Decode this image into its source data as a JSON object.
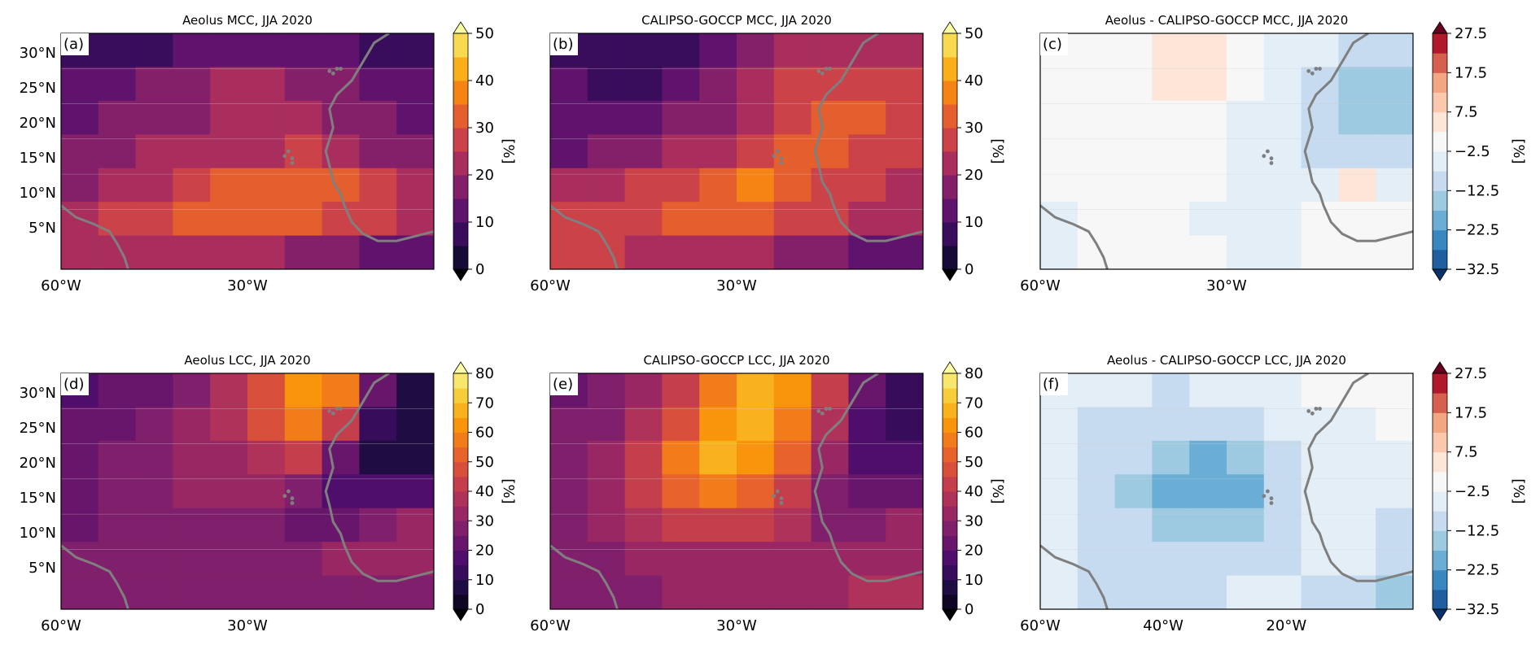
{
  "colors": {
    "inferno": [
      "#000004",
      "#1b0c41",
      "#4a0c6b",
      "#781c6d",
      "#a52c60",
      "#cf4446",
      "#ed6925",
      "#fb9b06",
      "#f7d13d",
      "#fcffa4"
    ],
    "diverging": [
      "#08306b",
      "#1f5fa0",
      "#3887c0",
      "#6aaed6",
      "#9ecae1",
      "#c6dbef",
      "#e3eef7",
      "#f7f7f7",
      "#fde5d8",
      "#fbc8ae",
      "#f4a582",
      "#d6604d",
      "#b2182b",
      "#67001f"
    ],
    "coastline": "#7f7f7f"
  },
  "chart_data": [
    {
      "id": "a",
      "type": "heatmap",
      "panel_label": "(a)",
      "title": "Aeolus MCC, JJA 2020",
      "colorbar": {
        "ticks": [
          "0",
          "10",
          "20",
          "30",
          "40",
          "50"
        ],
        "label": "[%]",
        "levels": [
          0,
          5,
          10,
          15,
          20,
          25,
          30,
          35,
          40,
          45,
          50
        ],
        "extend": "both",
        "cmap": "inferno"
      },
      "x_ticks": [
        "60°W",
        "30°W"
      ],
      "y_ticks": [
        "30°N",
        "25°N",
        "20°N",
        "15°N",
        "10°N",
        "5°N"
      ],
      "value_grid": [
        [
          8,
          6,
          7,
          10,
          12,
          14,
          12,
          10,
          8,
          6
        ],
        [
          12,
          14,
          15,
          18,
          20,
          20,
          18,
          15,
          12,
          10
        ],
        [
          14,
          15,
          17,
          19,
          20,
          21,
          20,
          18,
          15,
          12
        ],
        [
          15,
          17,
          20,
          22,
          24,
          24,
          25,
          22,
          18,
          15
        ],
        [
          18,
          20,
          24,
          27,
          30,
          33,
          33,
          32,
          28,
          24
        ],
        [
          24,
          25,
          28,
          30,
          30,
          31,
          30,
          28,
          25,
          22
        ],
        [
          22,
          24,
          24,
          22,
          20,
          20,
          18,
          15,
          13,
          12
        ]
      ]
    },
    {
      "id": "b",
      "type": "heatmap",
      "panel_label": "(b)",
      "title": "CALIPSO-GOCCP MCC, JJA 2020",
      "colorbar": {
        "ticks": [
          "0",
          "10",
          "20",
          "30",
          "40",
          "50"
        ],
        "label": "[%]",
        "levels": [
          0,
          5,
          10,
          15,
          20,
          25,
          30,
          35,
          40,
          45,
          50
        ],
        "extend": "both",
        "cmap": "inferno"
      },
      "x_ticks": [
        "60°W",
        "30°W"
      ],
      "y_ticks": [],
      "value_grid": [
        [
          9,
          7,
          6,
          8,
          12,
          16,
          20,
          22,
          24,
          22
        ],
        [
          10,
          9,
          9,
          12,
          16,
          22,
          25,
          28,
          28,
          26
        ],
        [
          11,
          11,
          12,
          15,
          18,
          24,
          28,
          32,
          30,
          28
        ],
        [
          14,
          15,
          17,
          20,
          24,
          28,
          32,
          30,
          28,
          26
        ],
        [
          20,
          22,
          25,
          28,
          32,
          38,
          33,
          28,
          25,
          24
        ],
        [
          25,
          26,
          28,
          30,
          30,
          30,
          28,
          25,
          22,
          20
        ],
        [
          28,
          26,
          24,
          22,
          22,
          20,
          18,
          16,
          14,
          12
        ]
      ]
    },
    {
      "id": "c",
      "type": "heatmap",
      "panel_label": "(c)",
      "title": "Aeolus - CALIPSO-GOCCP MCC, JJA 2020",
      "colorbar": {
        "ticks": [
          "27.5",
          "17.5",
          "7.5",
          "−2.5",
          "−12.5",
          "−22.5",
          "−32.5"
        ],
        "label": "[%]",
        "levels": [
          -32.5,
          -27.5,
          -22.5,
          -17.5,
          -12.5,
          -7.5,
          -2.5,
          2.5,
          7.5,
          12.5,
          17.5,
          22.5,
          27.5
        ],
        "extend": "both",
        "cmap": "diverging"
      },
      "x_ticks": [
        "60°W",
        "30°W"
      ],
      "y_ticks": [],
      "value_grid": [
        [
          0,
          0,
          0,
          3,
          3,
          0,
          -3,
          -5,
          -8,
          -8
        ],
        [
          0,
          0,
          0,
          3,
          3,
          0,
          -4,
          -8,
          -14,
          -14
        ],
        [
          0,
          0,
          0,
          0,
          0,
          -3,
          -6,
          -10,
          -14,
          -14
        ],
        [
          0,
          0,
          0,
          0,
          0,
          -4,
          -6,
          -8,
          -10,
          -8
        ],
        [
          0,
          0,
          0,
          0,
          0,
          -3,
          -4,
          -5,
          3,
          -3
        ],
        [
          -3,
          0,
          0,
          0,
          -3,
          -3,
          -4,
          0,
          0,
          0
        ],
        [
          -3,
          0,
          0,
          0,
          0,
          -3,
          -3,
          0,
          0,
          0
        ]
      ]
    },
    {
      "id": "d",
      "type": "heatmap",
      "panel_label": "(d)",
      "title": "Aeolus LCC, JJA 2020",
      "colorbar": {
        "ticks": [
          "0",
          "10",
          "20",
          "30",
          "40",
          "50",
          "60",
          "70",
          "80"
        ],
        "label": "[%]",
        "levels": [
          0,
          5,
          10,
          15,
          20,
          25,
          30,
          35,
          40,
          45,
          50,
          55,
          60,
          65,
          70,
          75,
          80
        ],
        "extend": "both",
        "cmap": "inferno"
      },
      "x_ticks": [
        "60°W",
        "30°W"
      ],
      "y_ticks": [
        "30°N",
        "25°N",
        "20°N",
        "15°N",
        "10°N",
        "5°N"
      ],
      "value_grid": [
        [
          18,
          20,
          22,
          28,
          35,
          45,
          60,
          55,
          20,
          8
        ],
        [
          20,
          22,
          25,
          30,
          35,
          45,
          55,
          40,
          10,
          5
        ],
        [
          22,
          25,
          28,
          30,
          33,
          38,
          40,
          20,
          5,
          5
        ],
        [
          23,
          25,
          28,
          30,
          30,
          30,
          25,
          15,
          15,
          18
        ],
        [
          24,
          25,
          27,
          28,
          28,
          28,
          22,
          20,
          28,
          30
        ],
        [
          25,
          26,
          27,
          28,
          28,
          28,
          28,
          30,
          33,
          30
        ],
        [
          25,
          25,
          27,
          28,
          28,
          28,
          28,
          28,
          28,
          28
        ]
      ]
    },
    {
      "id": "e",
      "type": "heatmap",
      "panel_label": "(e)",
      "title": "CALIPSO-GOCCP LCC, JJA 2020",
      "colorbar": {
        "ticks": [
          "0",
          "10",
          "20",
          "30",
          "40",
          "50",
          "60",
          "70",
          "80"
        ],
        "label": "[%]",
        "levels": [
          0,
          5,
          10,
          15,
          20,
          25,
          30,
          35,
          40,
          45,
          50,
          55,
          60,
          65,
          70,
          75,
          80
        ],
        "extend": "both",
        "cmap": "inferno"
      },
      "x_ticks": [
        "60°W",
        "30°W"
      ],
      "y_ticks": [],
      "value_grid": [
        [
          22,
          25,
          30,
          40,
          55,
          65,
          60,
          40,
          20,
          10
        ],
        [
          25,
          28,
          35,
          48,
          62,
          68,
          58,
          35,
          15,
          10
        ],
        [
          28,
          33,
          40,
          55,
          65,
          62,
          50,
          30,
          15,
          15
        ],
        [
          28,
          32,
          40,
          50,
          55,
          52,
          42,
          25,
          20,
          20
        ],
        [
          28,
          30,
          35,
          40,
          42,
          40,
          35,
          28,
          28,
          30
        ],
        [
          28,
          28,
          30,
          32,
          33,
          32,
          30,
          30,
          33,
          33
        ],
        [
          28,
          28,
          28,
          30,
          30,
          30,
          30,
          30,
          35,
          38
        ]
      ]
    },
    {
      "id": "f",
      "type": "heatmap",
      "panel_label": "(f)",
      "title": "Aeolus - CALIPSO-GOCCP LCC, JJA 2020",
      "colorbar": {
        "ticks": [
          "27.5",
          "17.5",
          "7.5",
          "−2.5",
          "−12.5",
          "−22.5",
          "−32.5"
        ],
        "label": "[%]",
        "levels": [
          -32.5,
          -27.5,
          -22.5,
          -17.5,
          -12.5,
          -7.5,
          -2.5,
          2.5,
          7.5,
          12.5,
          17.5,
          22.5,
          27.5
        ],
        "extend": "both",
        "cmap": "diverging"
      },
      "x_ticks": [
        "60°W",
        "40°W",
        "20°W"
      ],
      "y_ticks": [],
      "value_grid": [
        [
          -4,
          -5,
          -6,
          -8,
          -6,
          -4,
          -3,
          -2,
          0,
          0
        ],
        [
          -5,
          -8,
          -8,
          -10,
          -10,
          -8,
          -4,
          -3,
          -3,
          0
        ],
        [
          -6,
          -10,
          -12,
          -16,
          -18,
          -16,
          -10,
          -5,
          -4,
          -5
        ],
        [
          -6,
          -10,
          -14,
          -18,
          -19,
          -18,
          -12,
          -4,
          -3,
          -4
        ],
        [
          -6,
          -10,
          -12,
          -14,
          -16,
          -14,
          -10,
          -6,
          -6,
          -8
        ],
        [
          -6,
          -8,
          -10,
          -10,
          -10,
          -8,
          -8,
          -6,
          -6,
          -10
        ],
        [
          -6,
          -8,
          -8,
          -8,
          -8,
          -6,
          -6,
          -8,
          -12,
          -14
        ]
      ]
    }
  ]
}
